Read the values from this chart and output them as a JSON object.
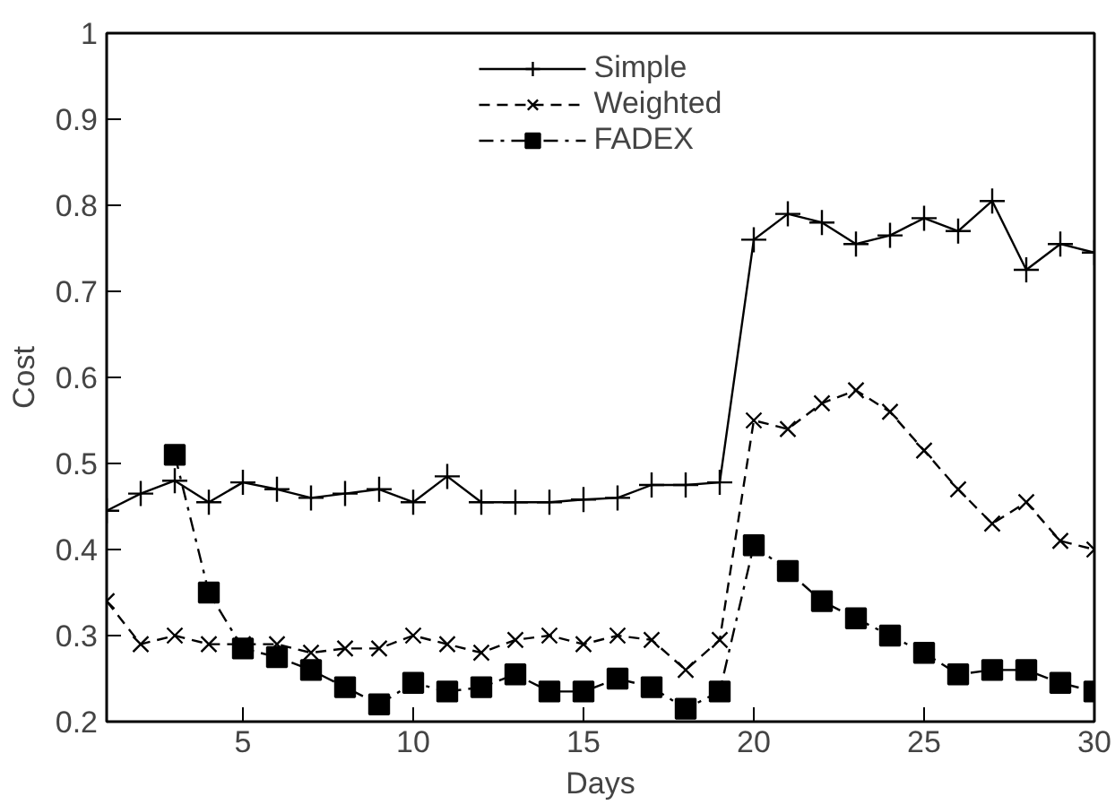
{
  "chart_data": {
    "type": "line",
    "xlabel": "Days",
    "ylabel": "Cost",
    "x": [
      1,
      2,
      3,
      4,
      5,
      6,
      7,
      8,
      9,
      10,
      11,
      12,
      13,
      14,
      15,
      16,
      17,
      18,
      19,
      20,
      21,
      22,
      23,
      24,
      25,
      26,
      27,
      28,
      29,
      30
    ],
    "xlim": [
      1,
      30
    ],
    "xticks": [
      5,
      10,
      15,
      20,
      25,
      30
    ],
    "ylim": [
      0.2,
      1
    ],
    "yticks": [
      0.2,
      0.3,
      0.4,
      0.5,
      0.6,
      0.7,
      0.8,
      0.9,
      1
    ],
    "grid": false,
    "legend": "top",
    "series": [
      {
        "name": "Simple",
        "color": "#000000",
        "marker": "cross",
        "line_style": "solid",
        "values": [
          0.445,
          0.465,
          0.48,
          0.455,
          0.478,
          0.47,
          0.46,
          0.465,
          0.47,
          0.455,
          0.485,
          0.455,
          0.455,
          0.455,
          0.458,
          0.46,
          0.475,
          0.475,
          0.478,
          0.76,
          0.79,
          0.78,
          0.755,
          0.765,
          0.785,
          0.77,
          0.805,
          0.725,
          0.755,
          0.745
        ]
      },
      {
        "name": "Weighted",
        "color": "#000000",
        "marker": "x",
        "line_style": "dashed",
        "values": [
          0.34,
          0.29,
          0.3,
          0.29,
          0.29,
          0.29,
          0.28,
          0.285,
          0.285,
          0.3,
          0.29,
          0.28,
          0.295,
          0.3,
          0.29,
          0.3,
          0.295,
          0.26,
          0.295,
          0.55,
          0.54,
          0.57,
          0.585,
          0.56,
          0.515,
          0.47,
          0.43,
          0.455,
          0.41,
          0.4
        ]
      },
      {
        "name": "FADEX",
        "color": "#000000",
        "marker": "square",
        "line_style": "dashdot",
        "values": [
          null,
          null,
          0.51,
          0.35,
          0.285,
          0.275,
          0.26,
          0.24,
          0.22,
          0.245,
          0.235,
          0.24,
          0.255,
          0.235,
          0.235,
          0.25,
          0.24,
          0.215,
          0.235,
          0.405,
          0.375,
          0.34,
          0.32,
          0.3,
          0.28,
          0.255,
          0.26,
          0.26,
          0.245,
          0.235
        ]
      }
    ]
  }
}
